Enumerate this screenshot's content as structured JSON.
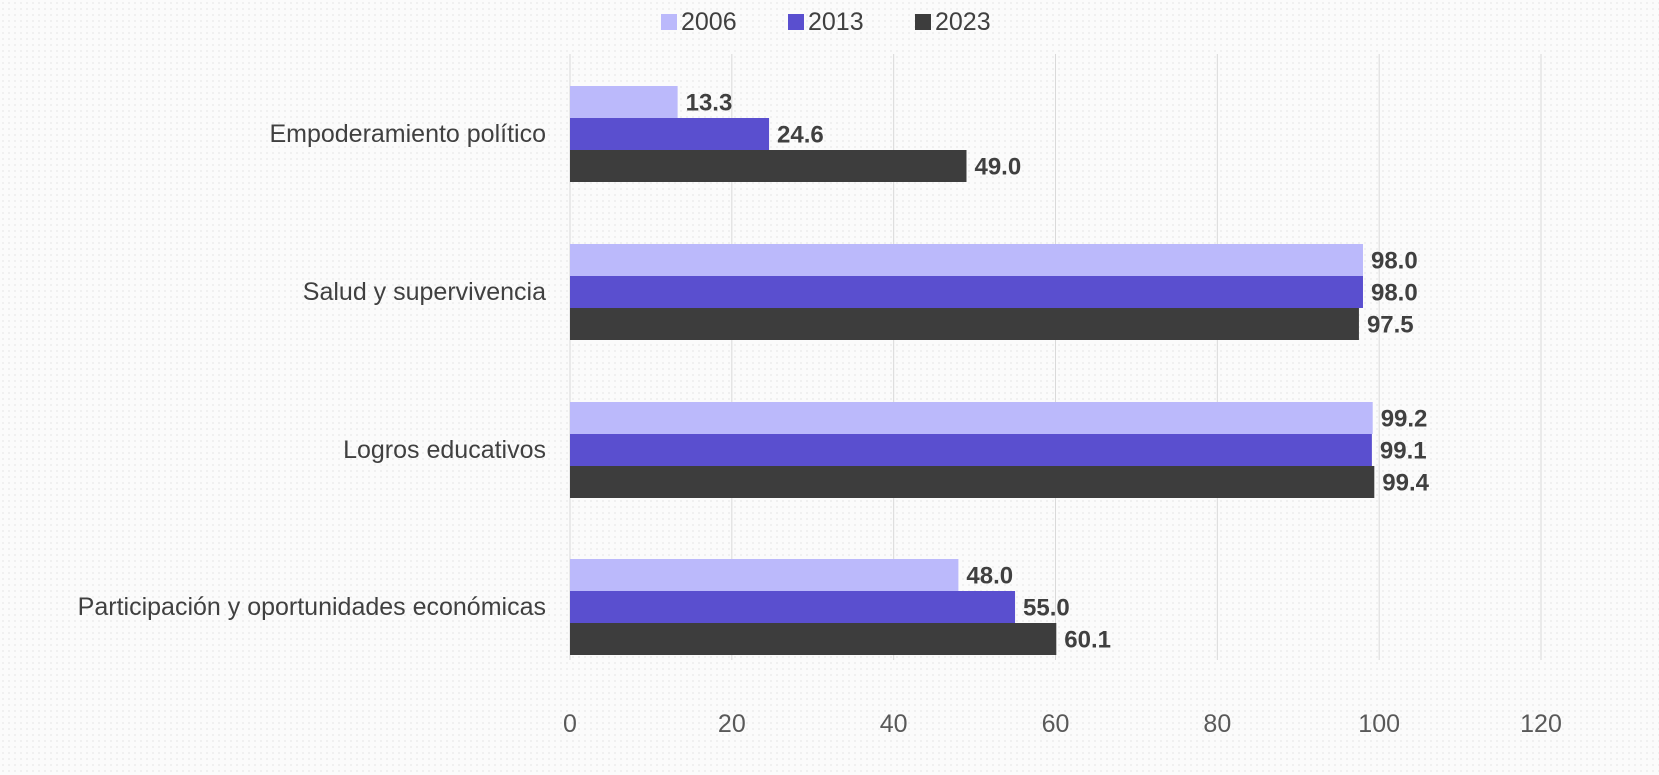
{
  "chart_data": {
    "type": "bar",
    "orientation": "horizontal",
    "categories": [
      "Empoderamiento político",
      "Salud y supervivencia",
      "Logros educativos",
      "Participación y oportunidades económicas"
    ],
    "series": [
      {
        "name": "2006",
        "color": "#bbb9fb",
        "values": [
          13.3,
          98.0,
          99.2,
          48.0
        ]
      },
      {
        "name": "2013",
        "color": "#5a4fcf",
        "values": [
          24.6,
          98.0,
          99.1,
          55.0
        ]
      },
      {
        "name": "2023",
        "color": "#3d3d3d",
        "values": [
          49.0,
          97.5,
          99.4,
          60.1
        ]
      }
    ],
    "data_labels": [
      [
        "13.3",
        "98.0",
        "99.2",
        "48.0"
      ],
      [
        "24.6",
        "98.0",
        "99.1",
        "55.0"
      ],
      [
        "49.0",
        "97.5",
        "99.4",
        "60.1"
      ]
    ],
    "x_ticks": [
      "0",
      "20",
      "40",
      "60",
      "80",
      "100",
      "120"
    ],
    "xlim": [
      0,
      120
    ],
    "grid": "vertical",
    "legend": "top-center",
    "title": "",
    "xlabel": "",
    "ylabel": ""
  }
}
